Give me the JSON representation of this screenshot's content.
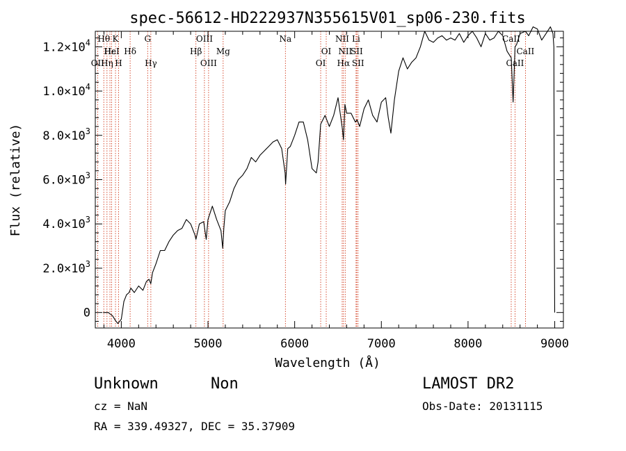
{
  "chart_data": {
    "type": "line",
    "title": "spec-56612-HD222937N355615V01_sp06-230.fits",
    "xlabel": "Wavelength (Å)",
    "ylabel": "Flux (relative)",
    "xlim": [
      3700,
      9100
    ],
    "ylim": [
      -700,
      12700
    ],
    "x_ticks": [
      {
        "value": 4000,
        "label": "4000"
      },
      {
        "value": 5000,
        "label": "5000"
      },
      {
        "value": 6000,
        "label": "6000"
      },
      {
        "value": 7000,
        "label": "7000"
      },
      {
        "value": 8000,
        "label": "8000"
      },
      {
        "value": 9000,
        "label": "9000"
      }
    ],
    "y_ticks": [
      {
        "value": 0,
        "label": "0"
      },
      {
        "value": 2000,
        "mant": "2.0×10",
        "exp": "3"
      },
      {
        "value": 4000,
        "mant": "4.0×10",
        "exp": "3"
      },
      {
        "value": 6000,
        "mant": "6.0×10",
        "exp": "3"
      },
      {
        "value": 8000,
        "mant": "8.0×10",
        "exp": "3"
      },
      {
        "value": 10000,
        "mant": "1.0×10",
        "exp": "4"
      },
      {
        "value": 12000,
        "mant": "1.2×10",
        "exp": "4"
      }
    ],
    "grid": false,
    "series": [
      {
        "color": "#000000",
        "x": [
          3790,
          3850,
          3900,
          3930,
          3960,
          4000,
          4030,
          4060,
          4090,
          4110,
          4150,
          4200,
          4250,
          4290,
          4320,
          4340,
          4360,
          4400,
          4450,
          4500,
          4550,
          4600,
          4650,
          4700,
          4750,
          4800,
          4850,
          4861,
          4900,
          4950,
          4980,
          5000,
          5050,
          5100,
          5150,
          5170,
          5183,
          5200,
          5250,
          5300,
          5350,
          5400,
          5450,
          5500,
          5550,
          5600,
          5650,
          5700,
          5750,
          5800,
          5850,
          5890,
          5895,
          5920,
          5950,
          6000,
          6050,
          6100,
          6150,
          6200,
          6250,
          6270,
          6300,
          6350,
          6400,
          6450,
          6500,
          6550,
          6563,
          6580,
          6600,
          6650,
          6700,
          6720,
          6750,
          6800,
          6850,
          6900,
          6950,
          7000,
          7050,
          7080,
          7110,
          7150,
          7200,
          7250,
          7300,
          7350,
          7400,
          7450,
          7500,
          7550,
          7600,
          7650,
          7700,
          7750,
          7800,
          7850,
          7900,
          7950,
          8000,
          8050,
          8100,
          8150,
          8200,
          8250,
          8300,
          8350,
          8400,
          8450,
          8498,
          8520,
          8542,
          8560,
          8600,
          8662,
          8700,
          8750,
          8800,
          8850,
          8900,
          8950,
          8980,
          8990,
          8995,
          9000
        ],
        "y": [
          0,
          0,
          -150,
          -350,
          -500,
          -300,
          500,
          800,
          900,
          1100,
          900,
          1200,
          1000,
          1400,
          1500,
          1300,
          1800,
          2200,
          2800,
          2800,
          3200,
          3500,
          3700,
          3800,
          4200,
          4000,
          3500,
          3300,
          4000,
          4100,
          3300,
          4200,
          4800,
          4200,
          3700,
          2900,
          3800,
          4600,
          5000,
          5600,
          6000,
          6200,
          6500,
          7000,
          6800,
          7100,
          7300,
          7500,
          7700,
          7800,
          7400,
          6300,
          5800,
          7400,
          7500,
          8000,
          8600,
          8600,
          7800,
          6500,
          6300,
          6800,
          8500,
          8900,
          8400,
          8900,
          9700,
          8300,
          7800,
          9400,
          9000,
          9000,
          8600,
          8700,
          8400,
          9200,
          9600,
          8900,
          8600,
          9500,
          9700,
          8800,
          8100,
          9600,
          10900,
          11500,
          11000,
          11300,
          11500,
          12000,
          12700,
          12300,
          12200,
          12400,
          12500,
          12300,
          12400,
          12300,
          12600,
          12200,
          12500,
          12700,
          12400,
          12000,
          12600,
          12300,
          12400,
          12700,
          12500,
          11800,
          11500,
          9500,
          12000,
          12100,
          12600,
          12700,
          12500,
          12900,
          12800,
          12300,
          12600,
          12900,
          12600,
          12000,
          4000,
          0
        ]
      }
    ],
    "lines": [
      {
        "x": 3727,
        "row": 2,
        "label": "OII"
      },
      {
        "x": 3798,
        "row": 0,
        "label": "Hθ"
      },
      {
        "x": 3835,
        "row": 2,
        "label": "Hη"
      },
      {
        "x": 3869,
        "row": 1,
        "label": "Hε"
      },
      {
        "x": 3889,
        "row": 1,
        "label": "HeI"
      },
      {
        "x": 3933,
        "row": 0,
        "label": "K"
      },
      {
        "x": 3969,
        "row": 2,
        "label": "H"
      },
      {
        "x": 4102,
        "row": 1,
        "label": "Hδ"
      },
      {
        "x": 4304,
        "row": 0,
        "label": "G"
      },
      {
        "x": 4341,
        "row": 2,
        "label": "Hγ"
      },
      {
        "x": 4861,
        "row": 1,
        "label": "Hβ"
      },
      {
        "x": 4959,
        "row": 0,
        "label": "OIII"
      },
      {
        "x": 5007,
        "row": 2,
        "label": "OIII"
      },
      {
        "x": 5175,
        "row": 1,
        "label": "Mg"
      },
      {
        "x": 5893,
        "row": 0,
        "label": "Na"
      },
      {
        "x": 6300,
        "row": 2,
        "label": "OI"
      },
      {
        "x": 6364,
        "row": 1,
        "label": "OI"
      },
      {
        "x": 6548,
        "row": 0,
        "label": "NII"
      },
      {
        "x": 6563,
        "row": 2,
        "label": "Hα"
      },
      {
        "x": 6583,
        "row": 1,
        "label": "NII"
      },
      {
        "x": 6708,
        "row": 0,
        "label": "Li"
      },
      {
        "x": 6716,
        "row": 1,
        "label": "SII"
      },
      {
        "x": 6731,
        "row": 2,
        "label": "SII"
      },
      {
        "x": 8498,
        "row": 0,
        "label": "CaII"
      },
      {
        "x": 8542,
        "row": 2,
        "label": "CaII"
      },
      {
        "x": 8662,
        "row": 1,
        "label": "CaII"
      }
    ],
    "line_color": "#cc2200"
  },
  "info": {
    "object_name": "Unknown",
    "object_type": "Non",
    "cz": "cz = NaN",
    "coords": "RA = 339.49327, DEC =  35.37909",
    "survey": "LAMOST DR2",
    "obs_date": "Obs-Date: 20131115"
  }
}
